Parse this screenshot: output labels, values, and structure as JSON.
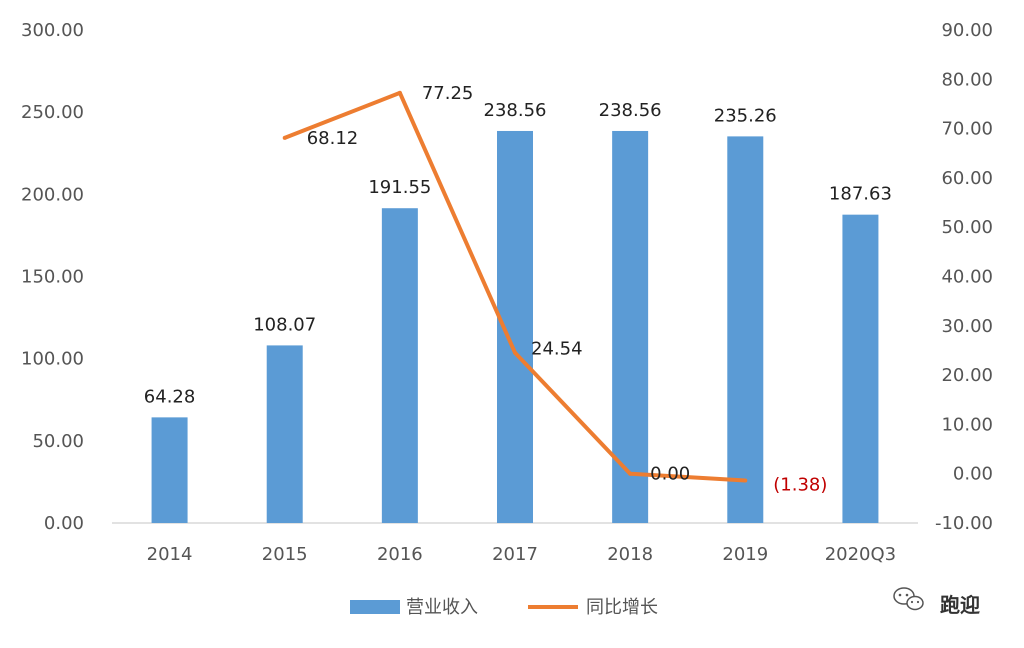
{
  "chart_data": {
    "type": "bar",
    "categories": [
      "2014",
      "2015",
      "2016",
      "2017",
      "2018",
      "2019",
      "2020Q3"
    ],
    "series": [
      {
        "name": "营业收入",
        "type": "bar",
        "axis": "left",
        "color": "#5b9bd5",
        "values": [
          64.28,
          108.07,
          191.55,
          238.56,
          238.56,
          235.26,
          187.63
        ],
        "labels": [
          "64.28",
          "108.07",
          "191.55",
          "238.56",
          "238.56",
          "235.26",
          "187.63"
        ]
      },
      {
        "name": "同比增长",
        "type": "line",
        "axis": "right",
        "color": "#ed7d31",
        "values": [
          null,
          68.12,
          77.25,
          24.54,
          0.0,
          -1.38,
          null
        ],
        "labels": [
          "",
          "68.12",
          "77.25",
          "24.54",
          "0.00",
          "(1.38)",
          ""
        ],
        "negative_label_color": "#c00000"
      }
    ],
    "y_left": {
      "ylim": [
        0,
        300
      ],
      "ticks": [
        "0.00",
        "50.00",
        "100.00",
        "150.00",
        "200.00",
        "250.00",
        "300.00"
      ]
    },
    "y_right": {
      "ylim": [
        -10,
        90
      ],
      "ticks": [
        "-10.00",
        "0.00",
        "10.00",
        "20.00",
        "30.00",
        "40.00",
        "50.00",
        "60.00",
        "70.00",
        "80.00",
        "90.00"
      ]
    },
    "grid": false,
    "legend": "bottom-center"
  },
  "watermark": {
    "text": "跑迎",
    "icon": "wechat-icon"
  }
}
